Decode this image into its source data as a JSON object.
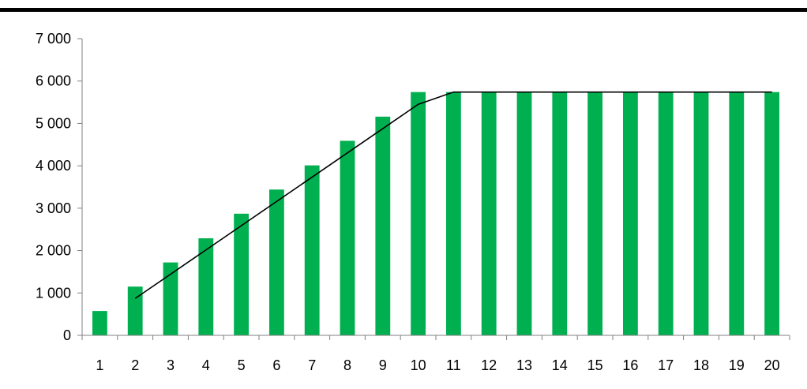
{
  "chart_data": {
    "type": "bar",
    "title": "",
    "xlabel": "",
    "ylabel": "",
    "ylim": [
      0,
      7000
    ],
    "yticks": [
      0,
      1000,
      2000,
      3000,
      4000,
      5000,
      6000,
      7000
    ],
    "ytick_labels": [
      "0",
      "1 000",
      "2 000",
      "3 000",
      "4 000",
      "5 000",
      "6 000",
      "7 000"
    ],
    "categories": [
      "1",
      "2",
      "3",
      "4",
      "5",
      "6",
      "7",
      "8",
      "9",
      "10",
      "11",
      "12",
      "13",
      "14",
      "15",
      "16",
      "17",
      "18",
      "19",
      "20"
    ],
    "series": [
      {
        "type": "bar",
        "color": "#00b050",
        "values": [
          575,
          1150,
          1720,
          2290,
          2870,
          3440,
          4010,
          4590,
          5160,
          5740,
          5740,
          5740,
          5740,
          5740,
          5740,
          5740,
          5740,
          5740,
          5740,
          5740
        ]
      },
      {
        "type": "line",
        "color": "#000000",
        "x": [
          "2",
          "10",
          "11",
          "20"
        ],
        "values": [
          870,
          5450,
          5740,
          5740
        ]
      }
    ],
    "grid": false,
    "legend": "none"
  }
}
